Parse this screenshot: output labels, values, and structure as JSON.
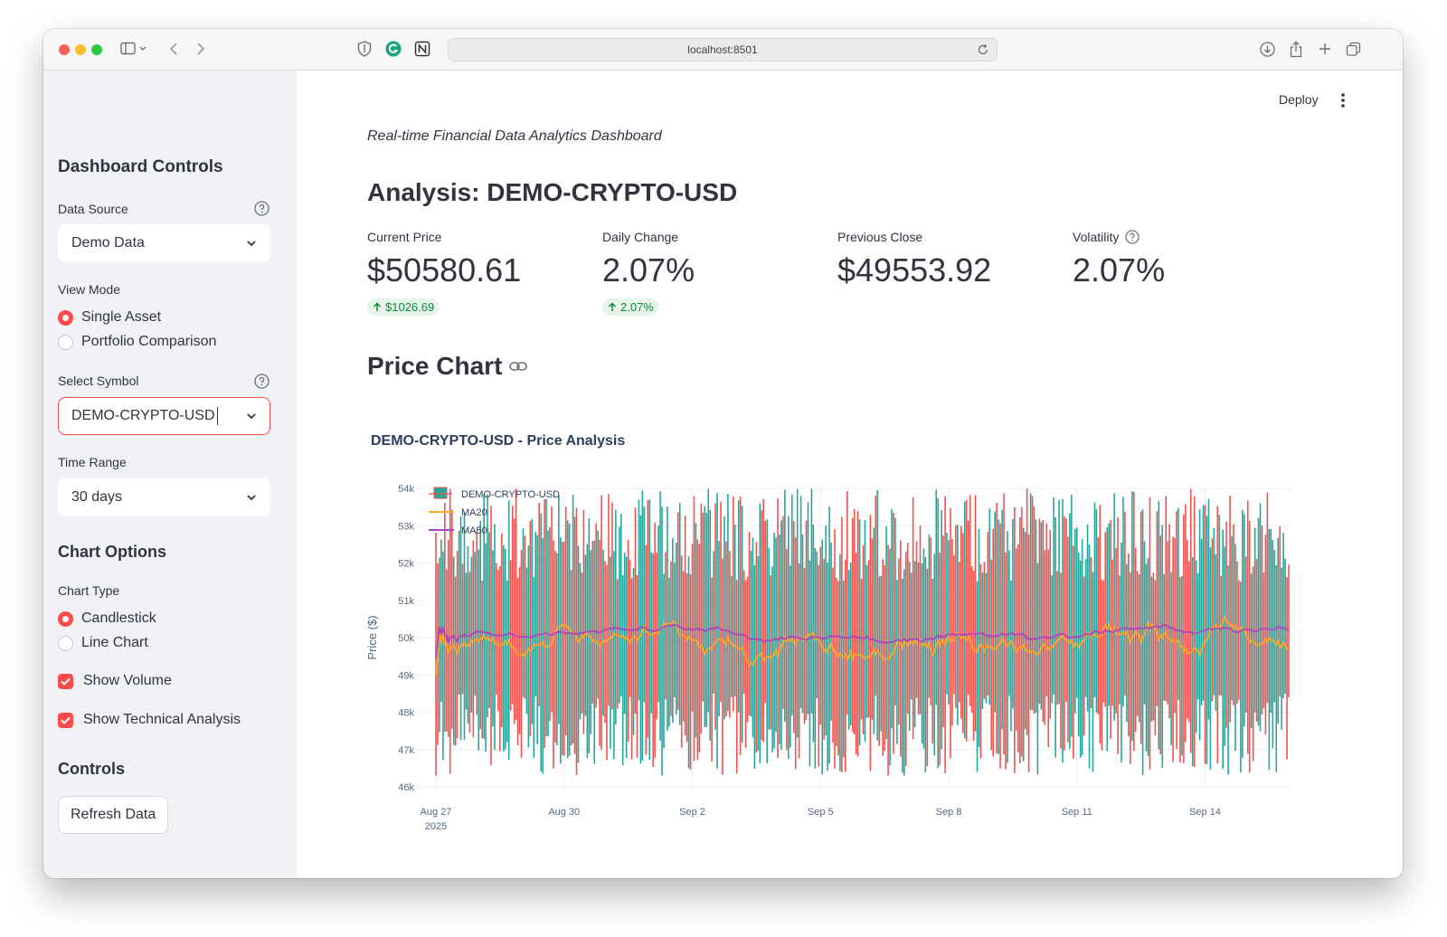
{
  "browser": {
    "url": "localhost:8501"
  },
  "app": {
    "deploy_label": "Deploy"
  },
  "sidebar": {
    "title": "Dashboard Controls",
    "data_source": {
      "label": "Data Source",
      "value": "Demo Data"
    },
    "view_mode": {
      "label": "View Mode",
      "options": [
        "Single Asset",
        "Portfolio Comparison"
      ],
      "selected": "Single Asset"
    },
    "symbol": {
      "label": "Select Symbol",
      "value": "DEMO-CRYPTO-USD"
    },
    "time_range": {
      "label": "Time Range",
      "value": "30 days"
    },
    "chart_options_title": "Chart Options",
    "chart_type": {
      "label": "Chart Type",
      "options": [
        "Candlestick",
        "Line Chart"
      ],
      "selected": "Candlestick"
    },
    "show_volume": {
      "label": "Show Volume",
      "checked": true
    },
    "show_ta": {
      "label": "Show Technical Analysis",
      "checked": true
    },
    "controls_title": "Controls",
    "refresh_label": "Refresh Data"
  },
  "main": {
    "subtitle": "Real-time Financial Data Analytics Dashboard",
    "analysis_title": "Analysis: DEMO-CRYPTO-USD",
    "metrics": [
      {
        "label": "Current Price",
        "value": "$50580.61",
        "delta": "$1026.69"
      },
      {
        "label": "Daily Change",
        "value": "2.07%",
        "delta": "2.07%"
      },
      {
        "label": "Previous Close",
        "value": "$49553.92"
      },
      {
        "label": "Volatility",
        "value": "2.07%"
      }
    ],
    "price_chart_title": "Price Chart"
  },
  "colors": {
    "accent": "#ff4b4b",
    "increasing": "#26a69a",
    "decreasing": "#ef5350",
    "ma20": "#ffa726",
    "ma50": "#ab47bc"
  },
  "chart_data": {
    "type": "candlestick",
    "title": "DEMO-CRYPTO-USD - Price Analysis",
    "ylabel": "Price ($)",
    "ylim": [
      46000,
      54000
    ],
    "yticks": [
      46000,
      47000,
      48000,
      49000,
      50000,
      51000,
      52000,
      53000,
      54000
    ],
    "ytick_labels": [
      "46k",
      "47k",
      "48k",
      "49k",
      "50k",
      "51k",
      "52k",
      "53k",
      "54k"
    ],
    "x_start": "2025-08-27",
    "x_end": "2025-09-16",
    "xtick_labels": [
      "Aug 27",
      "Aug 30",
      "Sep 2",
      "Sep 5",
      "Sep 8",
      "Sep 11",
      "Sep 14"
    ],
    "xtick_dates": [
      "2025-08-27",
      "2025-08-30",
      "2025-09-02",
      "2025-09-05",
      "2025-09-08",
      "2025-09-11",
      "2025-09-14"
    ],
    "x_year_label": "2025",
    "legend": [
      "DEMO-CRYPTO-USD",
      "MA20",
      "MA50"
    ],
    "legend_position": "top-left",
    "series_summary": {
      "candles_per_day": 24,
      "low_range": [
        46300,
        48500
      ],
      "high_range": [
        51500,
        54000
      ],
      "ma20_level": 50000,
      "ma50_level": 50200
    }
  }
}
